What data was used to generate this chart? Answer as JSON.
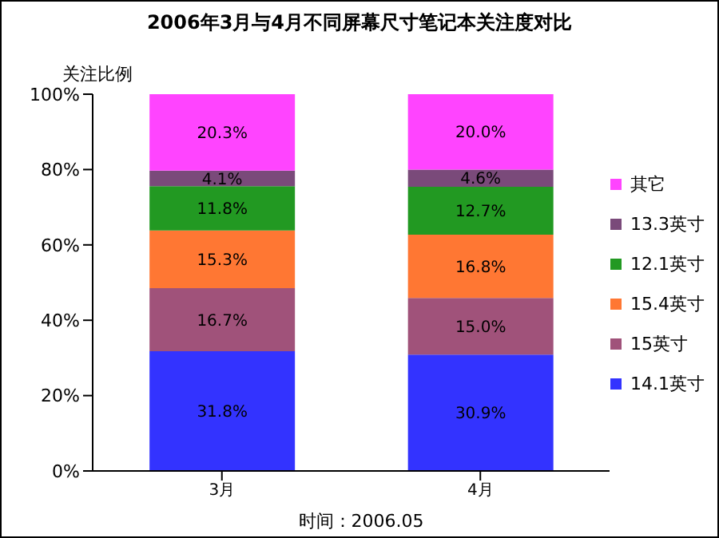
{
  "chart_data": {
    "type": "bar",
    "stacked": true,
    "title": "2006年3月与4月不同屏幕尺寸笔记本关注度对比",
    "ylabel": "关注比例",
    "categories": [
      "3月",
      "4月"
    ],
    "series": [
      {
        "name": "14.1英寸",
        "color": "#3333ff",
        "values": [
          31.8,
          30.9
        ],
        "value_labels": [
          "31.8%",
          "30.9%"
        ]
      },
      {
        "name": "15英寸",
        "color": "#a0527a",
        "values": [
          16.7,
          15.0
        ],
        "value_labels": [
          "16.7%",
          "15.0%"
        ]
      },
      {
        "name": "15.4英寸",
        "color": "#ff7733",
        "values": [
          15.3,
          16.8
        ],
        "value_labels": [
          "15.3%",
          "16.8%"
        ]
      },
      {
        "name": "12.1英寸",
        "color": "#229922",
        "values": [
          11.8,
          12.7
        ],
        "value_labels": [
          "11.8%",
          "12.7%"
        ]
      },
      {
        "name": "13.3英寸",
        "color": "#7a4a7a",
        "values": [
          4.1,
          4.6
        ],
        "value_labels": [
          "4.1%",
          "4.6%"
        ]
      },
      {
        "name": "其它",
        "color": "#ff44ff",
        "values": [
          20.3,
          20.0
        ],
        "value_labels": [
          "20.3%",
          "20.0%"
        ]
      }
    ],
    "ylim": [
      0,
      100
    ],
    "yticks": [
      {
        "value": 0,
        "label": "0%"
      },
      {
        "value": 20,
        "label": "20%"
      },
      {
        "value": 40,
        "label": "40%"
      },
      {
        "value": 60,
        "label": "60%"
      },
      {
        "value": 80,
        "label": "80%"
      },
      {
        "value": 100,
        "label": "100%"
      }
    ],
    "legend": "right",
    "annotations": [
      "时间：2006.05"
    ]
  }
}
